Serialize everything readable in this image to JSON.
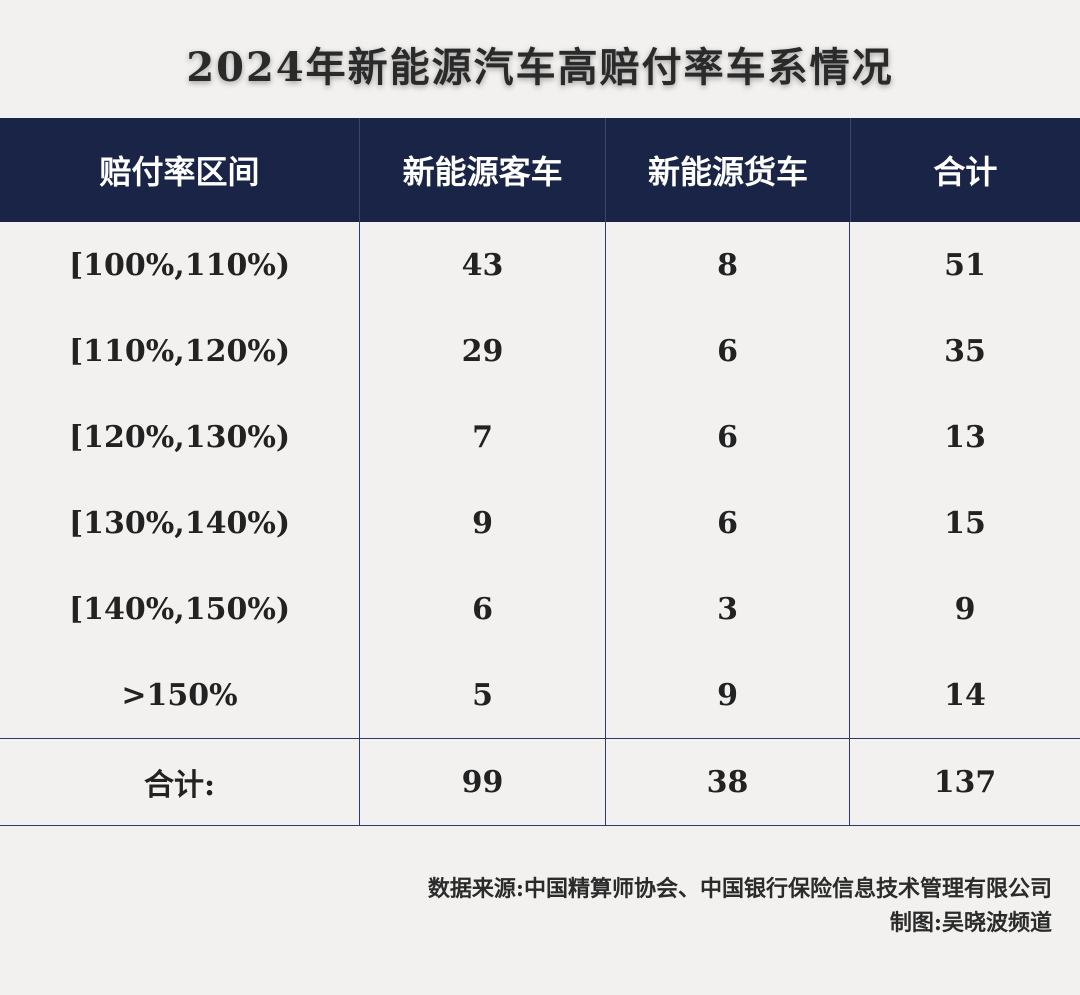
{
  "title": "2024年新能源汽车高赔付率车系情况",
  "table": {
    "headers": [
      "赔付率区间",
      "新能源客车",
      "新能源货车",
      "合计"
    ],
    "rows": [
      [
        "[100%,110%)",
        "43",
        "8",
        "51"
      ],
      [
        "[110%,120%)",
        "29",
        "6",
        "35"
      ],
      [
        "[120%,130%)",
        "7",
        "6",
        "13"
      ],
      [
        "[130%,140%)",
        "9",
        "6",
        "15"
      ],
      [
        "[140%,150%)",
        "6",
        "3",
        "9"
      ],
      [
        ">150%",
        "5",
        "9",
        "14"
      ]
    ],
    "total": [
      "合计:",
      "99",
      "38",
      "137"
    ]
  },
  "footer": {
    "source": "数据来源:中国精算师协会、中国银行保险信息技术管理有限公司",
    "credit": "制图:吴晓波频道"
  },
  "colors": {
    "header_bg": "#1a2447",
    "background": "#f2f1ef",
    "grid_line": "#2e3a6a"
  }
}
